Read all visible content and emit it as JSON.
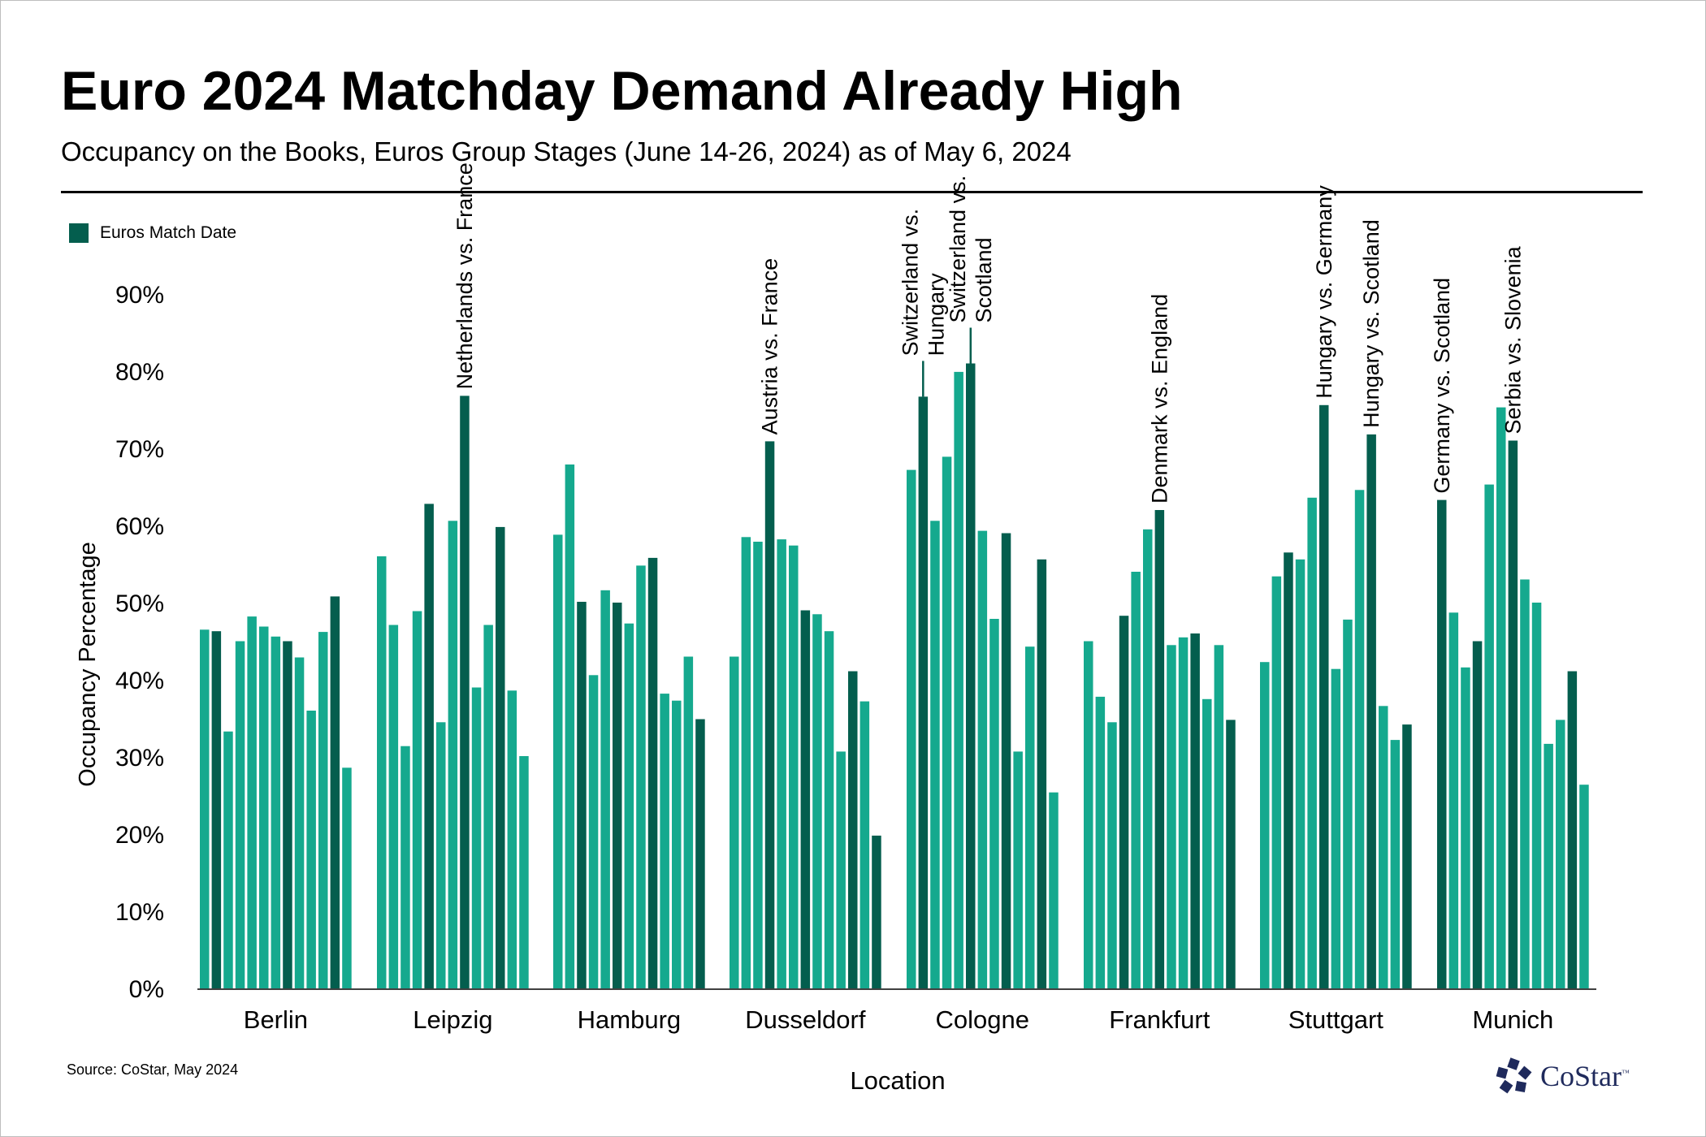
{
  "title": "Euro 2024 Matchday Demand Already High",
  "subtitle": "Occupancy on the Books, Euros Group Stages (June 14-26, 2024) as of May 6, 2024",
  "legend": {
    "label": "Euros Match Date"
  },
  "source": "Source: CoStar, May 2024",
  "brand": {
    "name": "CoStar",
    "tm": "™"
  },
  "colors": {
    "non_match": "#15a98e",
    "match": "#045e4e",
    "axis": "#000000"
  },
  "chart_data": {
    "type": "bar",
    "xlabel": "Location",
    "ylabel": "Occupancy Percentage",
    "ylim": [
      0,
      90
    ],
    "yticks": [
      "0%",
      "10%",
      "20%",
      "30%",
      "40%",
      "50%",
      "60%",
      "70%",
      "80%",
      "90%"
    ],
    "grid": false,
    "legend_position": "top-left",
    "groups": [
      {
        "name": "Berlin",
        "values": [
          46.5,
          46.3,
          33.3,
          45,
          48.2,
          46.9,
          45.6,
          45,
          42.9,
          36,
          46.2,
          50.8,
          28.6
        ],
        "match": [
          false,
          true,
          false,
          false,
          false,
          false,
          false,
          true,
          false,
          false,
          false,
          true,
          false
        ],
        "annotations": []
      },
      {
        "name": "Leipzig",
        "values": [
          56,
          47.1,
          31.4,
          48.9,
          62.8,
          34.5,
          60.6,
          76.8,
          39,
          47.1,
          59.8,
          38.6,
          30.1
        ],
        "match": [
          false,
          false,
          false,
          false,
          true,
          false,
          false,
          true,
          false,
          false,
          true,
          false,
          false
        ],
        "annotations": [
          {
            "bar": 7,
            "lines": [
              "Netherlands vs. France"
            ]
          }
        ]
      },
      {
        "name": "Hamburg",
        "values": [
          58.8,
          67.9,
          50.1,
          40.6,
          51.6,
          50,
          47.3,
          54.8,
          55.8,
          38.2,
          37.3,
          43,
          34.9
        ],
        "match": [
          false,
          false,
          true,
          false,
          false,
          true,
          false,
          false,
          true,
          false,
          false,
          false,
          true
        ],
        "annotations": []
      },
      {
        "name": "Dusseldorf",
        "values": [
          43,
          58.5,
          57.9,
          70.9,
          58.2,
          57.4,
          49,
          48.5,
          46.3,
          30.7,
          41.1,
          37.2,
          19.8
        ],
        "match": [
          false,
          false,
          false,
          true,
          false,
          false,
          true,
          false,
          false,
          false,
          true,
          false,
          true
        ],
        "annotations": [
          {
            "bar": 3,
            "lines": [
              "Austria vs. France"
            ]
          }
        ]
      },
      {
        "name": "Cologne",
        "values": [
          67.2,
          76.7,
          60.6,
          68.9,
          79.9,
          81,
          59.3,
          47.9,
          59,
          30.7,
          44.3,
          55.6,
          25.4
        ],
        "match": [
          false,
          true,
          false,
          false,
          false,
          true,
          false,
          false,
          true,
          false,
          false,
          true,
          false
        ],
        "annotations": [
          {
            "bar": 1,
            "lines": [
              "Switzerland vs.",
              "Hungary"
            ],
            "leader": true
          },
          {
            "bar": 5,
            "lines": [
              "Switzerland vs.",
              "Scotland"
            ],
            "leader": true
          }
        ]
      },
      {
        "name": "Frankfurt",
        "values": [
          45,
          37.8,
          34.5,
          48.3,
          54,
          59.5,
          62,
          44.5,
          45.5,
          46,
          37.5,
          44.5,
          34.8
        ],
        "match": [
          false,
          false,
          false,
          true,
          false,
          false,
          true,
          false,
          false,
          true,
          false,
          false,
          true
        ],
        "annotations": [
          {
            "bar": 6,
            "lines": [
              "Denmark vs. England"
            ]
          }
        ]
      },
      {
        "name": "Stuttgart",
        "values": [
          42.3,
          53.4,
          56.5,
          55.6,
          63.6,
          75.6,
          41.4,
          47.8,
          64.6,
          71.8,
          36.6,
          32.2,
          34.2
        ],
        "match": [
          false,
          false,
          true,
          false,
          false,
          true,
          false,
          false,
          false,
          true,
          false,
          false,
          true
        ],
        "annotations": [
          {
            "bar": 5,
            "lines": [
              "Hungary vs. Germany"
            ]
          },
          {
            "bar": 9,
            "lines": [
              "Hungary vs. Scotland"
            ]
          }
        ]
      },
      {
        "name": "Munich",
        "values": [
          63.3,
          48.7,
          41.6,
          45,
          65.3,
          75.3,
          71,
          53,
          50,
          31.7,
          34.8,
          41.1,
          26.4
        ],
        "match": [
          true,
          false,
          false,
          true,
          false,
          false,
          true,
          false,
          false,
          false,
          false,
          true,
          false
        ],
        "annotations": [
          {
            "bar": 0,
            "lines": [
              "Germany vs. Scotland"
            ]
          },
          {
            "bar": 6,
            "lines": [
              "Serbia vs. Slovenia"
            ]
          }
        ]
      }
    ]
  }
}
